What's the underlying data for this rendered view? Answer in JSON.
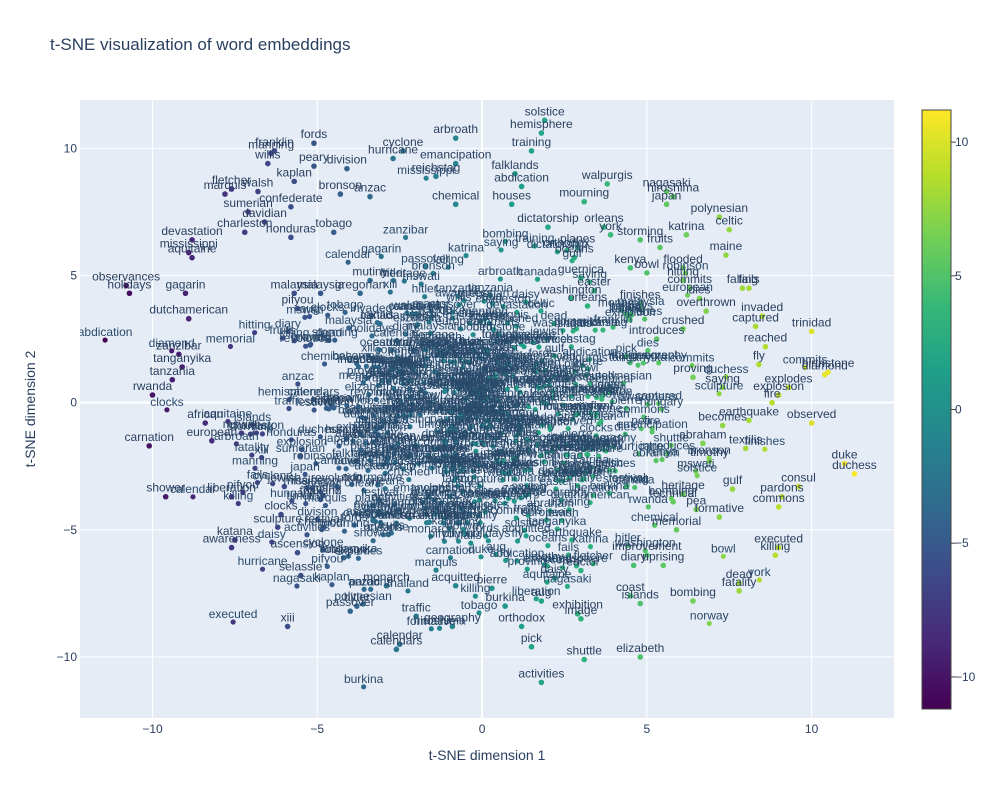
{
  "chart_data": {
    "type": "scatter",
    "title": "t-SNE visualization of word embeddings",
    "xlabel": "t-SNE dimension 1",
    "ylabel": "t-SNE dimension 2",
    "xlim": [
      -12.2,
      12.5
    ],
    "ylim": [
      -12.4,
      11.9
    ],
    "x_ticks": [
      -10,
      -5,
      0,
      5,
      10
    ],
    "y_ticks": [
      -10,
      -5,
      0,
      5,
      10
    ],
    "x_tick_labels": [
      "−10",
      "−5",
      "0",
      "5",
      "10"
    ],
    "y_tick_labels": [
      "−10",
      "−5",
      "0",
      "5",
      "10"
    ],
    "grid": true,
    "colorscale": "viridis",
    "colorbar": {
      "min": -11.2,
      "max": 11.2,
      "ticks": [
        -10,
        -5,
        0,
        5,
        10
      ],
      "tick_labels": [
        "−10",
        "−5",
        "0",
        "5",
        "10"
      ]
    },
    "colors": {
      "plot_bg": "#e5ecf6",
      "grid": "#ffffff",
      "text": "#2a3f5f",
      "dense_cluster": "#2a4a6b"
    },
    "points": [
      {
        "label": "hemisphere",
        "x": 1.8,
        "y": 10.6,
        "c": 1.8
      },
      {
        "label": "solstice",
        "x": 1.9,
        "y": 11.1,
        "c": 1.9
      },
      {
        "label": "arbroath",
        "x": -0.8,
        "y": 10.4,
        "c": -0.8
      },
      {
        "label": "fords",
        "x": -5.1,
        "y": 10.2,
        "c": -5.1
      },
      {
        "label": "franklin",
        "x": -6.3,
        "y": 9.9,
        "c": -6.3
      },
      {
        "label": "manning",
        "x": -6.4,
        "y": 9.8,
        "c": -6.4
      },
      {
        "label": "willis",
        "x": -6.5,
        "y": 9.4,
        "c": -6.5
      },
      {
        "label": "peary",
        "x": -5.1,
        "y": 9.3,
        "c": -5.1
      },
      {
        "label": "cyclone",
        "x": -2.4,
        "y": 9.9,
        "c": -2.4
      },
      {
        "label": "hurricane",
        "x": -2.7,
        "y": 9.6,
        "c": -2.7
      },
      {
        "label": "training",
        "x": 1.5,
        "y": 9.9,
        "c": 1.5
      },
      {
        "label": "emancipation",
        "x": -0.8,
        "y": 9.4,
        "c": -0.8
      },
      {
        "label": "division",
        "x": -4.1,
        "y": 9.2,
        "c": -4.1
      },
      {
        "label": "falklands",
        "x": 1.0,
        "y": 9.0,
        "c": 1.0
      },
      {
        "label": "reichstag",
        "x": -1.4,
        "y": 8.9,
        "c": -1.4
      },
      {
        "label": "abdication",
        "x": 1.2,
        "y": 8.5,
        "c": 1.2
      },
      {
        "label": "walpurgis",
        "x": 3.8,
        "y": 8.6,
        "c": 3.8
      },
      {
        "label": "nagasaki",
        "x": 5.6,
        "y": 8.3,
        "c": 5.6
      },
      {
        "label": "hiroshima",
        "x": 5.8,
        "y": 8.1,
        "c": 5.8
      },
      {
        "label": "japan",
        "x": 5.6,
        "y": 7.8,
        "c": 5.6
      },
      {
        "label": "fletcher",
        "x": -7.6,
        "y": 8.4,
        "c": -7.6
      },
      {
        "label": "marquis",
        "x": -7.8,
        "y": 8.2,
        "c": -7.8
      },
      {
        "label": "kaplan",
        "x": -5.7,
        "y": 8.7,
        "c": -5.7
      },
      {
        "label": "walsh",
        "x": -6.8,
        "y": 8.3,
        "c": -6.8
      },
      {
        "label": "anzac",
        "x": -3.4,
        "y": 8.1,
        "c": -3.4
      },
      {
        "label": "bronson",
        "x": -4.3,
        "y": 8.2,
        "c": -4.3
      },
      {
        "label": "chemical",
        "x": -0.8,
        "y": 7.8,
        "c": -0.8
      },
      {
        "label": "houses",
        "x": 0.9,
        "y": 7.8,
        "c": 0.9
      },
      {
        "label": "mourning",
        "x": 3.1,
        "y": 7.9,
        "c": 3.1
      },
      {
        "label": "polynesian",
        "x": 7.2,
        "y": 7.3,
        "c": 7.2
      },
      {
        "label": "celtic",
        "x": 7.5,
        "y": 6.8,
        "c": 7.5
      },
      {
        "label": "sumerian",
        "x": -7.1,
        "y": 7.5,
        "c": -7.1
      },
      {
        "label": "confederate",
        "x": -5.8,
        "y": 7.7,
        "c": -5.8
      },
      {
        "label": "davidian",
        "x": -6.6,
        "y": 7.1,
        "c": -6.6
      },
      {
        "label": "dictatorship",
        "x": 2.0,
        "y": 6.9,
        "c": 2.0
      },
      {
        "label": "orleans",
        "x": 3.7,
        "y": 6.9,
        "c": 3.7
      },
      {
        "label": "york",
        "x": 3.9,
        "y": 6.6,
        "c": 3.9
      },
      {
        "label": "charleston",
        "x": -7.2,
        "y": 6.7,
        "c": -7.2
      },
      {
        "label": "tobago",
        "x": -4.5,
        "y": 6.7,
        "c": -4.5
      },
      {
        "label": "storming",
        "x": 4.8,
        "y": 6.4,
        "c": 4.8
      },
      {
        "label": "katrina",
        "x": 6.2,
        "y": 6.6,
        "c": 6.2
      },
      {
        "label": "devastation",
        "x": -8.8,
        "y": 6.4,
        "c": -8.8
      },
      {
        "label": "honduras",
        "x": -5.8,
        "y": 6.5,
        "c": -5.8
      },
      {
        "label": "planes",
        "x": 2.9,
        "y": 6.1,
        "c": 2.9
      },
      {
        "label": "fruits",
        "x": 5.4,
        "y": 6.1,
        "c": 5.4
      },
      {
        "label": "oceans",
        "x": 2.8,
        "y": 5.7,
        "c": 2.8
      },
      {
        "label": "maine",
        "x": 7.4,
        "y": 5.8,
        "c": 7.4
      },
      {
        "label": "mississippi",
        "x": -8.9,
        "y": 5.9,
        "c": -8.9
      },
      {
        "label": "aquitaine",
        "x": -8.8,
        "y": 5.7,
        "c": -8.8
      },
      {
        "label": "kenya",
        "x": 4.5,
        "y": 5.3,
        "c": 4.5
      },
      {
        "label": "flooded",
        "x": 6.1,
        "y": 5.3,
        "c": 6.1
      },
      {
        "label": "bowl",
        "x": 5.0,
        "y": 5.1,
        "c": 5.0
      },
      {
        "label": "guernica",
        "x": 3.0,
        "y": 4.9,
        "c": 3.0
      },
      {
        "label": "hitting",
        "x": 6.1,
        "y": 4.8,
        "c": 6.1
      },
      {
        "label": "observances",
        "x": -10.8,
        "y": 4.6,
        "c": -10.8
      },
      {
        "label": "holidays",
        "x": -10.7,
        "y": 4.3,
        "c": -10.7
      },
      {
        "label": "gagarin",
        "x": -9.0,
        "y": 4.3,
        "c": -9.0
      },
      {
        "label": "easter",
        "x": 3.4,
        "y": 4.4,
        "c": 3.4
      },
      {
        "label": "commits",
        "x": 6.3,
        "y": 4.5,
        "c": 6.3
      },
      {
        "label": "fails",
        "x": 8.1,
        "y": 4.5,
        "c": 8.1
      },
      {
        "label": "falling",
        "x": 7.9,
        "y": 4.5,
        "c": 7.9
      },
      {
        "label": "washington",
        "x": 2.7,
        "y": 4.1,
        "c": 2.7
      },
      {
        "label": "dies",
        "x": 6.6,
        "y": 4.1,
        "c": 6.6
      },
      {
        "label": "finishes",
        "x": 4.8,
        "y": 3.9,
        "c": 4.8
      },
      {
        "label": "malaysia",
        "x": -5.7,
        "y": 4.3,
        "c": -5.7
      },
      {
        "label": "gregorian",
        "x": -3.7,
        "y": 4.3,
        "c": -3.7
      },
      {
        "label": "overthrown",
        "x": 6.8,
        "y": 3.6,
        "c": 6.8
      },
      {
        "label": "invaded",
        "x": 8.5,
        "y": 3.4,
        "c": 8.5
      },
      {
        "label": "captured",
        "x": 8.3,
        "y": 3.0,
        "c": 8.3
      },
      {
        "label": "trinidad",
        "x": 10.0,
        "y": 2.8,
        "c": 10.0
      },
      {
        "label": "crushed",
        "x": 6.1,
        "y": 2.9,
        "c": 6.1
      },
      {
        "label": "dutchamerican",
        "x": -8.9,
        "y": 3.3,
        "c": -8.9
      },
      {
        "label": "zanzibar",
        "x": -9.2,
        "y": 1.9,
        "c": -9.2
      },
      {
        "label": "tanzania",
        "x": -9.4,
        "y": 0.9,
        "c": -9.4
      },
      {
        "label": "tanganyika",
        "x": -9.1,
        "y": 1.4,
        "c": -9.1
      },
      {
        "label": "rwanda",
        "x": -10.0,
        "y": 0.3,
        "c": -10.0
      },
      {
        "label": "african",
        "x": -8.4,
        "y": -0.8,
        "c": -8.4
      },
      {
        "label": "european",
        "x": -8.2,
        "y": -1.5,
        "c": -8.2
      },
      {
        "label": "carnation",
        "x": -10.1,
        "y": -1.7,
        "c": -10.1
      },
      {
        "label": "mswati",
        "x": -7.3,
        "y": -1.2,
        "c": -7.3
      },
      {
        "label": "shower",
        "x": -9.6,
        "y": -3.7,
        "c": -9.6
      },
      {
        "label": "liberation",
        "x": -7.6,
        "y": -3.7,
        "c": -7.6
      },
      {
        "label": "jewish",
        "x": -6.0,
        "y": -3.3,
        "c": -6.0
      },
      {
        "label": "thailand",
        "x": -4.9,
        "y": -3.8,
        "c": -4.9
      },
      {
        "label": "clocks",
        "x": -6.1,
        "y": -4.4,
        "c": -6.1
      },
      {
        "label": "sculpture",
        "x": -6.2,
        "y": -4.9,
        "c": -6.2
      },
      {
        "label": "festival",
        "x": -4.8,
        "y": -4.9,
        "c": -4.8
      },
      {
        "label": "kazakhstan",
        "x": -1.6,
        "y": -4.7,
        "c": -1.6
      },
      {
        "label": "katana",
        "x": -7.5,
        "y": -5.4,
        "c": -7.5
      },
      {
        "label": "awareness",
        "x": -7.6,
        "y": -5.7,
        "c": -7.6
      },
      {
        "label": "ascension",
        "x": -5.6,
        "y": -5.9,
        "c": -5.6
      },
      {
        "label": "robinson",
        "x": -4.2,
        "y": -6.1,
        "c": -4.2
      },
      {
        "label": "selassie",
        "x": -5.5,
        "y": -6.8,
        "c": -5.5
      },
      {
        "label": "monarch",
        "x": -2.9,
        "y": -7.2,
        "c": -2.9
      },
      {
        "label": "hitler",
        "x": -3.8,
        "y": -8.0,
        "c": -3.8
      },
      {
        "label": "passover",
        "x": -4.0,
        "y": -8.2,
        "c": -4.0
      },
      {
        "label": "traffic",
        "x": -2.0,
        "y": -8.4,
        "c": -2.0
      },
      {
        "label": "xiii",
        "x": -5.9,
        "y": -8.8,
        "c": -5.9
      },
      {
        "label": "calendar",
        "x": -2.5,
        "y": -9.5,
        "c": -2.5
      },
      {
        "label": "calendars",
        "x": -2.6,
        "y": -9.7,
        "c": -2.6
      },
      {
        "label": "geography",
        "x": -0.9,
        "y": -8.8,
        "c": -0.9
      },
      {
        "label": "orthodox",
        "x": 1.2,
        "y": -8.8,
        "c": 1.2
      },
      {
        "label": "burkina",
        "x": 0.7,
        "y": -8.0,
        "c": 0.7
      },
      {
        "label": "aug",
        "x": 1.8,
        "y": -7.8,
        "c": 1.8
      },
      {
        "label": "pierre",
        "x": 0.3,
        "y": -7.3,
        "c": 0.3
      },
      {
        "label": "acquitted",
        "x": -0.8,
        "y": -7.2,
        "c": -0.8
      },
      {
        "label": "daisy",
        "x": 2.2,
        "y": -6.9,
        "c": 2.2
      },
      {
        "label": "reactor",
        "x": 3.0,
        "y": -6.6,
        "c": 3.0
      },
      {
        "label": "exhibition",
        "x": 2.9,
        "y": -8.3,
        "c": 2.9
      },
      {
        "label": "image",
        "x": 3.0,
        "y": -8.5,
        "c": 3.0
      },
      {
        "label": "coast",
        "x": 4.5,
        "y": -7.6,
        "c": 4.5
      },
      {
        "label": "islands",
        "x": 4.8,
        "y": -7.9,
        "c": 4.8
      },
      {
        "label": "pick",
        "x": 1.5,
        "y": -9.6,
        "c": 1.5
      },
      {
        "label": "shuttle",
        "x": 3.1,
        "y": -10.1,
        "c": 3.1
      },
      {
        "label": "elizabeth",
        "x": 4.8,
        "y": -10.0,
        "c": 4.8
      },
      {
        "label": "activities",
        "x": 1.8,
        "y": -11.0,
        "c": 1.8
      },
      {
        "label": "bombing",
        "x": 6.4,
        "y": -7.8,
        "c": 6.4
      },
      {
        "label": "dead",
        "x": 7.8,
        "y": -7.1,
        "c": 7.8
      },
      {
        "label": "fatality",
        "x": 7.8,
        "y": -7.4,
        "c": 7.8
      },
      {
        "label": "diary",
        "x": 4.6,
        "y": -6.4,
        "c": 4.6
      },
      {
        "label": "uprising",
        "x": 5.5,
        "y": -6.4,
        "c": 5.5
      },
      {
        "label": "improvement",
        "x": 5.0,
        "y": -6.0,
        "c": 5.0
      },
      {
        "label": "memorial",
        "x": 5.9,
        "y": -5.0,
        "c": 5.9
      },
      {
        "label": "killing",
        "x": 8.9,
        "y": -6.0,
        "c": 8.9
      },
      {
        "label": "executed",
        "x": 9.0,
        "y": -5.7,
        "c": 9.0
      },
      {
        "label": "formative",
        "x": 7.2,
        "y": -4.5,
        "c": 7.2
      },
      {
        "label": "pea",
        "x": 6.5,
        "y": -4.2,
        "c": 6.5
      },
      {
        "label": "gulf",
        "x": 7.6,
        "y": -3.4,
        "c": 7.6
      },
      {
        "label": "commons",
        "x": 9.0,
        "y": -4.1,
        "c": 9.0
      },
      {
        "label": "pardons",
        "x": 9.1,
        "y": -3.7,
        "c": 9.1
      },
      {
        "label": "consul",
        "x": 9.6,
        "y": -3.3,
        "c": 9.6
      },
      {
        "label": "duchess",
        "x": 11.3,
        "y": -2.8,
        "c": 11.3
      },
      {
        "label": "duke",
        "x": 11.0,
        "y": -2.4,
        "c": 11.0
      },
      {
        "label": "textilis",
        "x": 8.0,
        "y": -1.8,
        "c": 8.0
      },
      {
        "label": "abraham",
        "x": 6.7,
        "y": -1.6,
        "c": 6.7
      },
      {
        "label": "timothy",
        "x": 6.9,
        "y": -2.3,
        "c": 6.9
      },
      {
        "label": "heritage",
        "x": 6.1,
        "y": -3.6,
        "c": 6.1
      },
      {
        "label": "technical",
        "x": 5.8,
        "y": -3.9,
        "c": 5.8
      },
      {
        "label": "becomes",
        "x": 7.3,
        "y": -0.9,
        "c": 7.3
      },
      {
        "label": "earthquake",
        "x": 8.1,
        "y": -0.7,
        "c": 8.1
      },
      {
        "label": "observed",
        "x": 10.0,
        "y": -0.8,
        "c": 10.0
      },
      {
        "label": "explodes",
        "x": 9.3,
        "y": 0.6,
        "c": 9.3
      },
      {
        "label": "explosion",
        "x": 9.0,
        "y": 0.3,
        "c": 9.0
      },
      {
        "label": "fire",
        "x": 8.8,
        "y": 0.0,
        "c": 8.8
      },
      {
        "label": "birthstone",
        "x": 10.5,
        "y": 1.2,
        "c": 10.5
      },
      {
        "label": "diamond",
        "x": 10.4,
        "y": 1.1,
        "c": 10.4
      },
      {
        "label": "fly",
        "x": 8.4,
        "y": 1.5,
        "c": 8.4
      },
      {
        "label": "reached",
        "x": 8.6,
        "y": 2.2,
        "c": 8.6
      },
      {
        "label": "saying",
        "x": 7.3,
        "y": 0.6,
        "c": 7.3
      },
      {
        "label": "proving",
        "x": 6.4,
        "y": 1.0,
        "c": 6.4
      },
      {
        "label": "introduces",
        "x": 5.3,
        "y": 2.5,
        "c": 5.3
      },
      {
        "label": "orleans",
        "x": 3.2,
        "y": 3.8,
        "c": 3.2
      },
      {
        "label": "canada",
        "x": -3.1,
        "y": 3.1,
        "c": -3.1
      },
      {
        "label": "estonia",
        "x": -4.5,
        "y": -0.2,
        "c": -4.5
      },
      {
        "label": "norway",
        "x": -2.0,
        "y": -1.7,
        "c": -2.0
      },
      {
        "label": "hungary",
        "x": -4.1,
        "y": -1.4,
        "c": -4.1
      },
      {
        "label": "revolution",
        "x": -4.4,
        "y": -3.3,
        "c": -4.4
      },
      {
        "label": "malaysia",
        "x": -4.9,
        "y": 4.3,
        "c": -4.9
      },
      {
        "label": "mutiny",
        "x": -3.4,
        "y": 4.8,
        "c": -3.4
      },
      {
        "label": "pifyou",
        "x": -5.6,
        "y": 3.7,
        "c": -5.6
      }
    ],
    "labels": [
      "hemisphere",
      "solstice",
      "arbroath",
      "fords",
      "franklin",
      "manning",
      "willis",
      "peary",
      "cyclone",
      "hurricane",
      "training",
      "emancipation",
      "division",
      "falklands",
      "reichstag",
      "abdication",
      "walpurgis",
      "nagasaki",
      "hiroshima",
      "japan",
      "fletcher",
      "marquis",
      "kaplan",
      "walsh",
      "anzac",
      "bronson",
      "chemical",
      "houses",
      "mourning",
      "polynesian",
      "celtic",
      "sumerian",
      "confederate",
      "davidian",
      "dictatorship",
      "orleans",
      "york",
      "charleston",
      "tobago",
      "storming",
      "katrina",
      "devastation",
      "honduras",
      "planes",
      "fruits",
      "oceans",
      "maine",
      "mississippi",
      "aquitaine",
      "kenya",
      "flooded",
      "bowl",
      "guernica",
      "hitting",
      "observances",
      "holidays",
      "gagarin",
      "easter",
      "commits",
      "fails",
      "falling",
      "washington",
      "dies",
      "finishes",
      "malaysia",
      "gregorian",
      "overthrown",
      "invaded",
      "captured",
      "trinidad",
      "crushed",
      "dutchamerican",
      "zanzibar",
      "tanzania",
      "tanganyika",
      "rwanda",
      "african",
      "european",
      "carnation",
      "mswati",
      "shower",
      "liberation",
      "jewish",
      "thailand",
      "clocks",
      "sculpture",
      "festival",
      "kazakhstan",
      "katana",
      "awareness",
      "ascension",
      "robinson",
      "selassie",
      "monarch",
      "hitler",
      "passover",
      "traffic",
      "xiii",
      "calendar",
      "calendars",
      "geography",
      "orthodox",
      "burkina",
      "aug",
      "pierre",
      "acquitted",
      "daisy",
      "reactor",
      "exhibition",
      "image",
      "coast",
      "islands",
      "pick",
      "shuttle",
      "elizabeth",
      "activities",
      "bombing",
      "dead",
      "fatality",
      "diary",
      "uprising",
      "improvement",
      "memorial",
      "killing",
      "executed",
      "formative",
      "pea",
      "gulf",
      "commons",
      "pardons",
      "consul",
      "duchess",
      "duke",
      "textilis",
      "abraham",
      "timothy",
      "heritage",
      "technical",
      "becomes",
      "earthquake",
      "observed",
      "explodes",
      "explosion",
      "fire",
      "birthstone",
      "diamond",
      "fly",
      "reached",
      "saying",
      "proving",
      "introduces",
      "orleans",
      "canada",
      "estonia",
      "norway",
      "hungary",
      "revolution",
      "malaysia",
      "mutiny",
      "pifyou"
    ],
    "dense_cluster": {
      "center": [
        -0.3,
        -1.0
      ],
      "spread": [
        3.2,
        3.0
      ],
      "count": 650
    }
  }
}
